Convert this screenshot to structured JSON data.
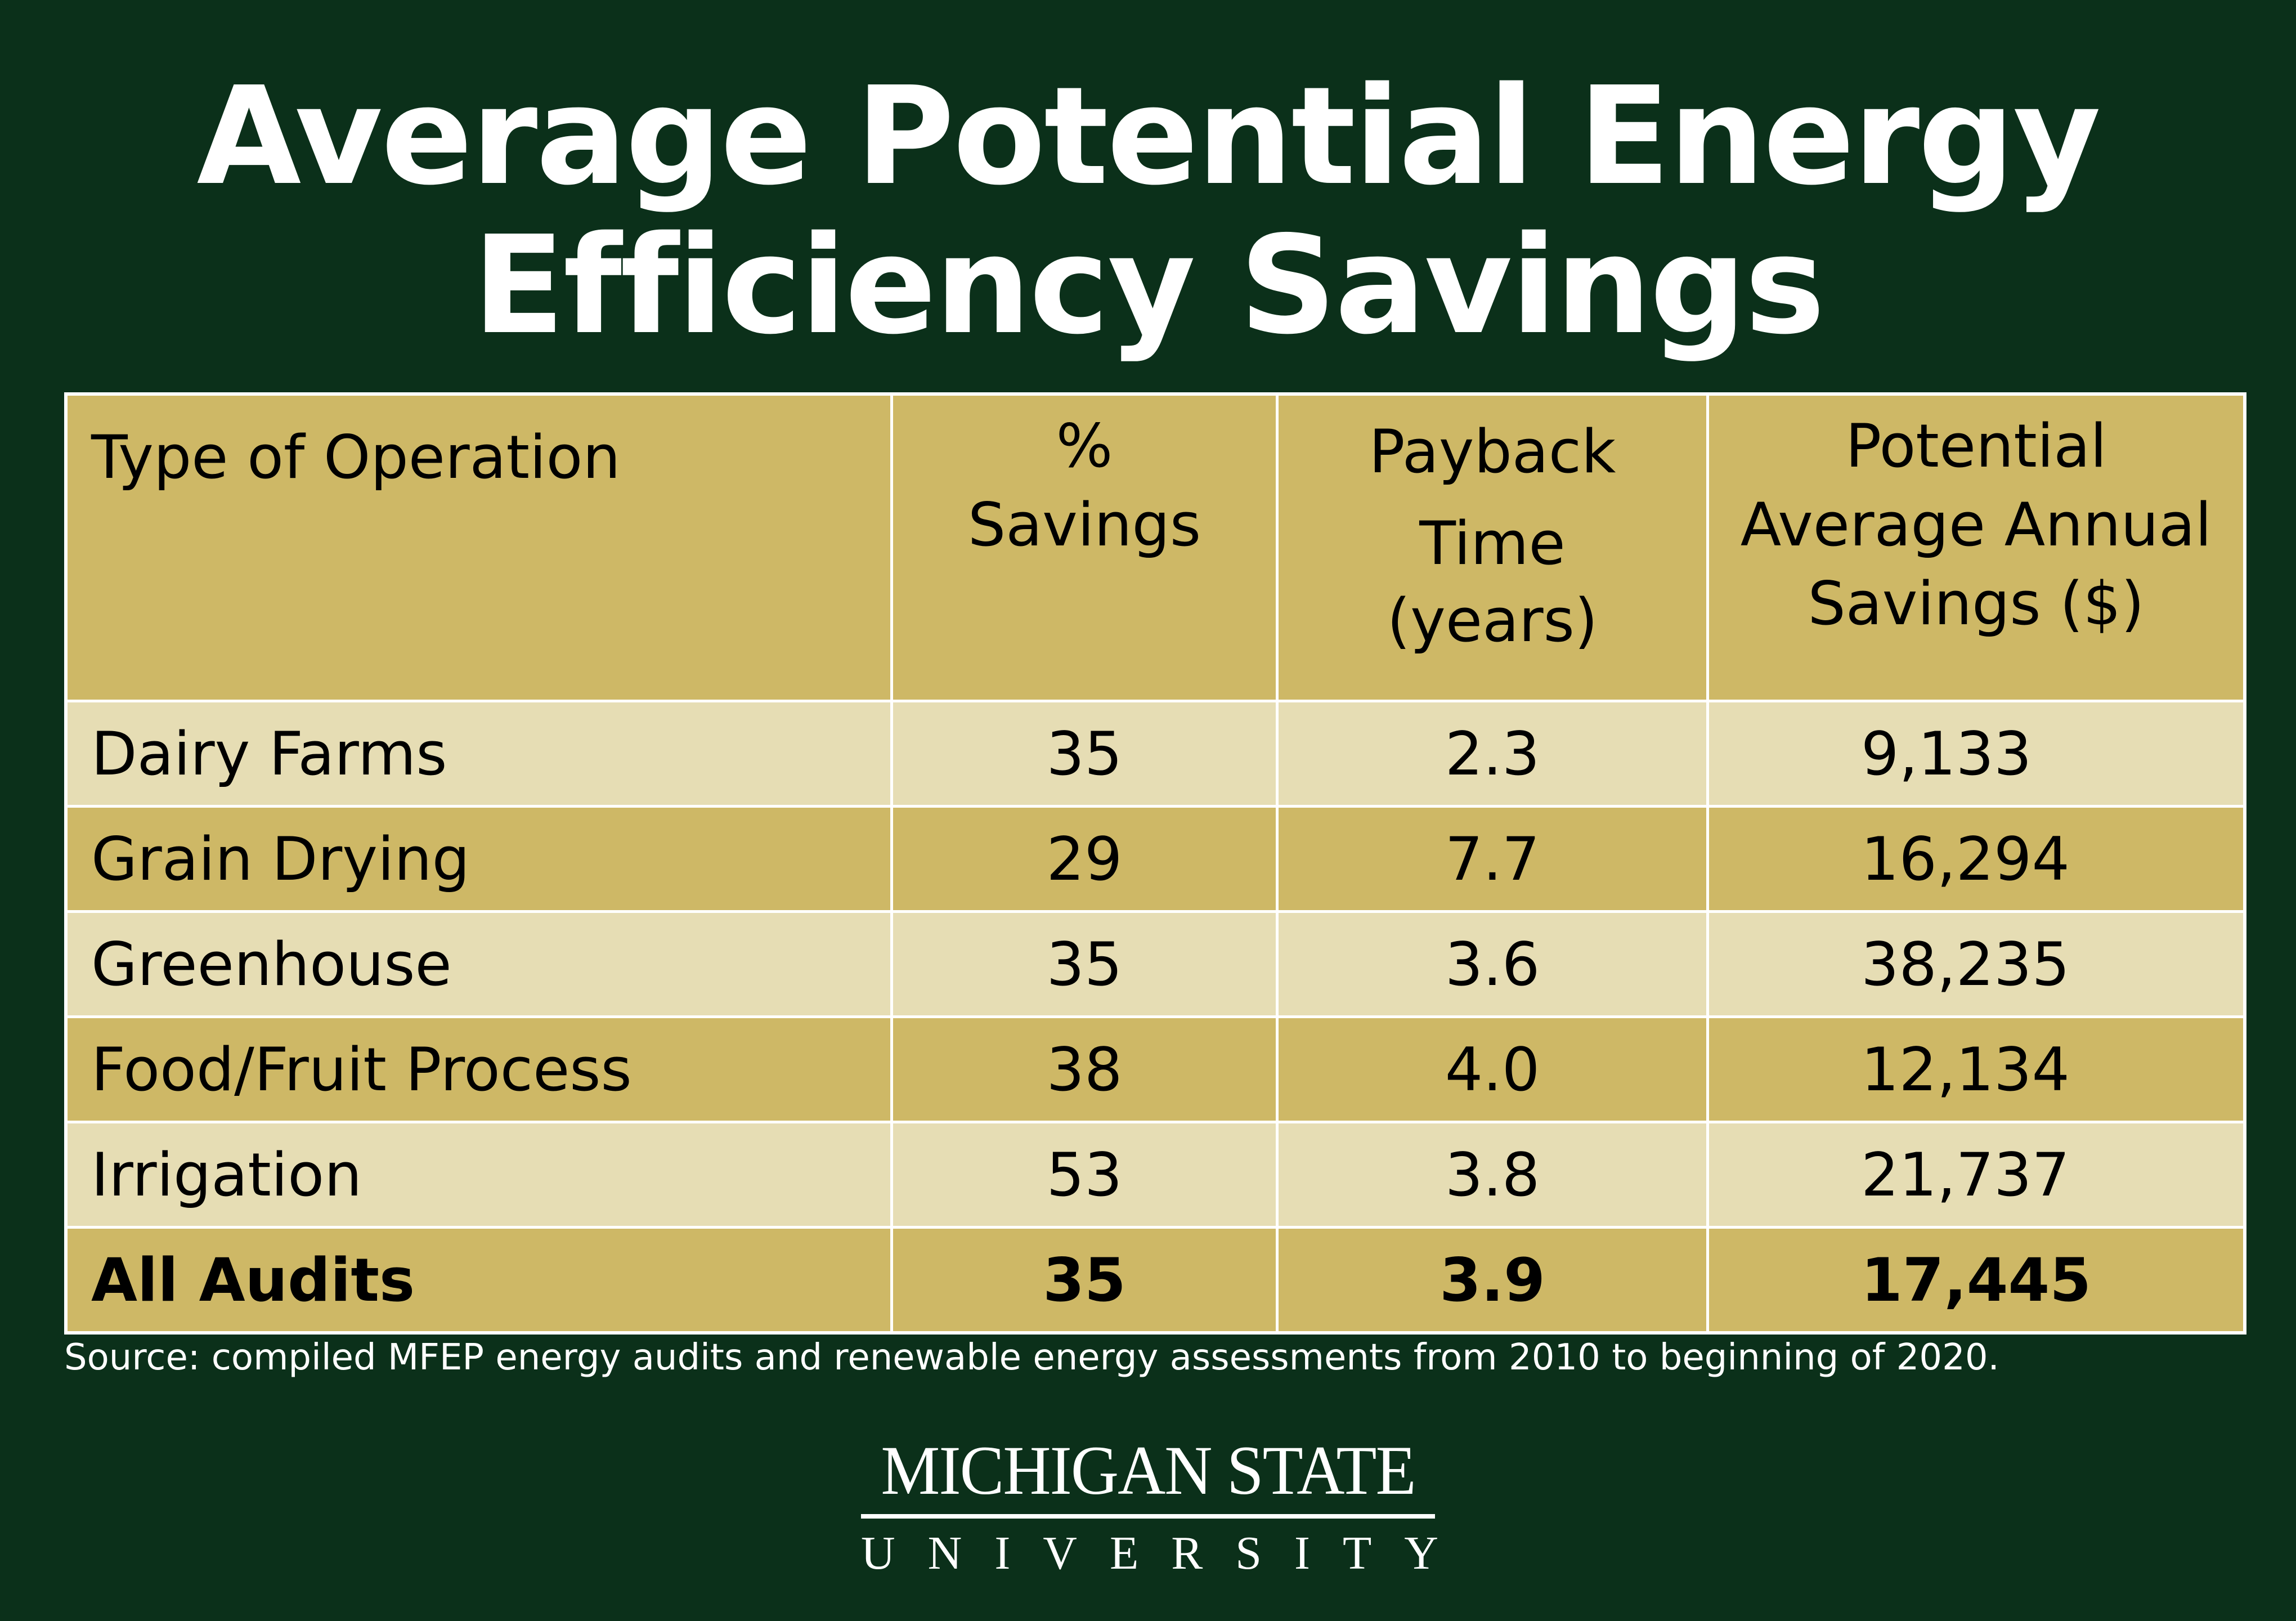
{
  "title": {
    "line1": "Average Potential Energy",
    "line2": "Efficiency Savings"
  },
  "table": {
    "headers": [
      "Type of Operation",
      "%\nSavings",
      "Payback\nTime\n(years)",
      "Potential\nAverage Annual\nSavings ($)"
    ],
    "header_lines": {
      "c0": [
        "Type of Operation"
      ],
      "c1": [
        "%",
        "Savings"
      ],
      "c2": [
        "Payback",
        "Time",
        "(years)"
      ],
      "c3": [
        "Potential",
        "Average Annual",
        "Savings ($)"
      ]
    },
    "rows": [
      [
        "Dairy Farms",
        "35",
        "2.3",
        "9,133"
      ],
      [
        "Grain Drying",
        "29",
        "7.7",
        "16,294"
      ],
      [
        "Greenhouse",
        "35",
        "3.6",
        "38,235"
      ],
      [
        "Food/Fruit Process",
        "38",
        "4.0",
        "12,134"
      ],
      [
        "Irrigation",
        "53",
        "3.8",
        "21,737"
      ]
    ],
    "total": [
      "All Audits",
      "35",
      "3.9",
      "17,445"
    ]
  },
  "source": "Source: compiled MFEP energy audits and renewable energy assessments from 2010 to beginning of 2020.",
  "logo": {
    "line1": "MICHIGAN STATE",
    "line2": "UNIVERSITY"
  },
  "colors": {
    "background": "#0b301a",
    "gold": "#ceb866",
    "light_gold": "#e6ddb4",
    "text": "#000000",
    "title": "#ffffff"
  }
}
